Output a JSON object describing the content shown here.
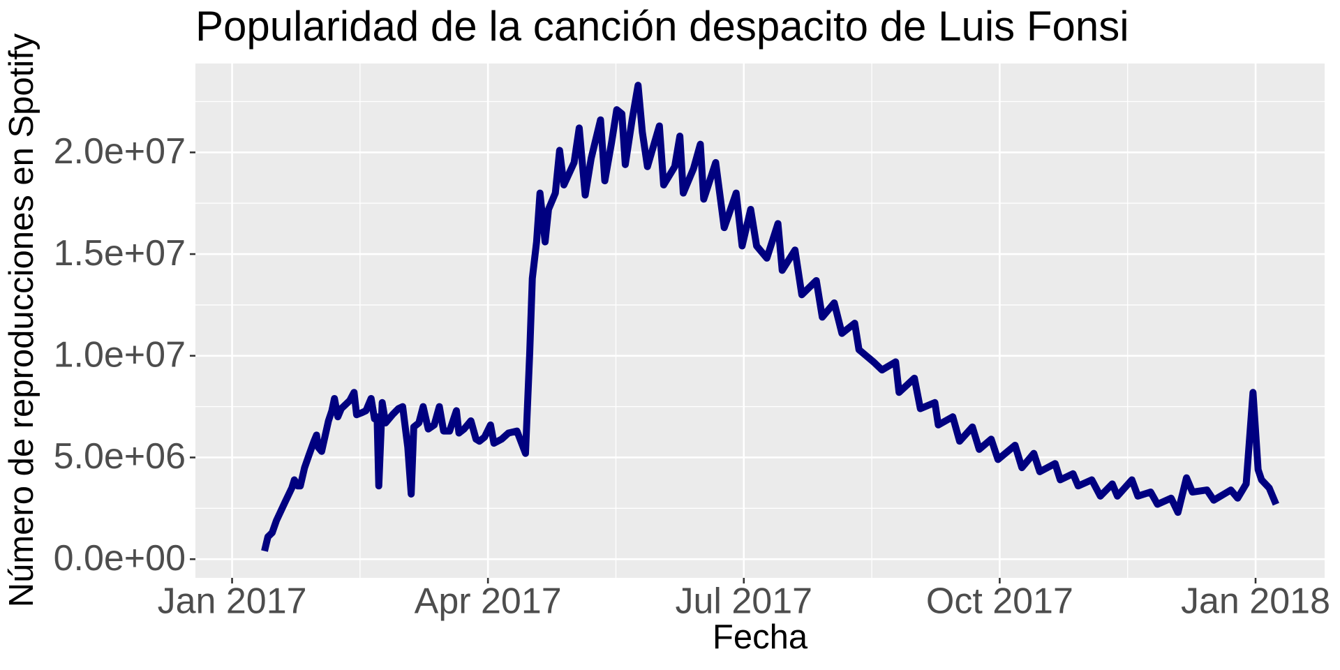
{
  "chart_data": {
    "type": "line",
    "title": "Popularidad de la canción despacito de Luis Fonsi",
    "x_label": "Fecha",
    "y_label": "Número de reproducciones en Spotify",
    "color": "#000080",
    "grid": true,
    "background": "#EBEBEB",
    "xlim": [
      -0.43,
      12.81
    ],
    "ylim": [
      -920000,
      24370000
    ],
    "xticks": [
      {
        "value": 0,
        "label": "Jan 2017"
      },
      {
        "value": 3,
        "label": "Apr 2017"
      },
      {
        "value": 6,
        "label": "Jul 2017"
      },
      {
        "value": 9,
        "label": "Oct 2017"
      },
      {
        "value": 12,
        "label": "Jan 2018"
      }
    ],
    "xminorticks": [
      1.5,
      4.5,
      7.5,
      10.5
    ],
    "yticks": [
      {
        "value": 0,
        "label": "0.0e+00"
      },
      {
        "value": 5000000,
        "label": "5.0e+06"
      },
      {
        "value": 10000000,
        "label": "1.0e+07"
      },
      {
        "value": 15000000,
        "label": "1.5e+07"
      },
      {
        "value": 20000000,
        "label": "2.0e+07"
      }
    ],
    "yminorticks": [
      2500000,
      7500000,
      12500000,
      17500000,
      22500000
    ],
    "x": [
      0.38,
      0.42,
      0.47,
      0.52,
      0.62,
      0.7,
      0.73,
      0.77,
      0.8,
      0.85,
      0.9,
      0.96,
      0.99,
      1.01,
      1.05,
      1.13,
      1.17,
      1.2,
      1.24,
      1.28,
      1.33,
      1.38,
      1.43,
      1.46,
      1.52,
      1.57,
      1.63,
      1.67,
      1.7,
      1.72,
      1.76,
      1.8,
      1.88,
      1.95,
      2.0,
      2.06,
      2.1,
      2.13,
      2.19,
      2.24,
      2.3,
      2.37,
      2.43,
      2.48,
      2.55,
      2.63,
      2.66,
      2.72,
      2.8,
      2.86,
      2.9,
      2.96,
      3.03,
      3.07,
      3.16,
      3.24,
      3.34,
      3.44,
      3.49,
      3.52,
      3.57,
      3.61,
      3.67,
      3.71,
      3.79,
      3.84,
      3.89,
      4.01,
      4.07,
      4.14,
      4.21,
      4.32,
      4.37,
      4.45,
      4.51,
      4.57,
      4.61,
      4.69,
      4.76,
      4.81,
      4.87,
      5.01,
      5.06,
      5.19,
      5.25,
      5.29,
      5.41,
      5.49,
      5.53,
      5.67,
      5.77,
      5.82,
      5.91,
      5.98,
      6.08,
      6.15,
      6.27,
      6.4,
      6.45,
      6.6,
      6.68,
      6.85,
      6.92,
      7.06,
      7.15,
      7.3,
      7.35,
      7.52,
      7.62,
      7.78,
      7.82,
      8.0,
      8.07,
      8.24,
      8.28,
      8.45,
      8.53,
      8.68,
      8.76,
      8.9,
      8.98,
      9.18,
      9.26,
      9.4,
      9.47,
      9.65,
      9.71,
      9.86,
      9.92,
      10.08,
      10.18,
      10.32,
      10.38,
      10.55,
      10.62,
      10.77,
      10.85,
      11.01,
      11.09,
      11.19,
      11.26,
      11.43,
      11.51,
      11.71,
      11.79,
      11.89,
      11.97,
      12.03,
      12.07,
      12.16,
      12.24
    ],
    "values": [
      400000,
      1100000,
      1300000,
      1900000,
      2800000,
      3500000,
      3900000,
      3600000,
      3600000,
      4500000,
      5100000,
      5800000,
      6100000,
      5500000,
      5300000,
      6800000,
      7300000,
      7900000,
      7000000,
      7400000,
      7600000,
      7800000,
      8200000,
      7100000,
      7200000,
      7300000,
      7900000,
      6900000,
      7000000,
      3600000,
      7700000,
      6700000,
      7100000,
      7400000,
      7500000,
      5500000,
      3200000,
      6500000,
      6700000,
      7500000,
      6400000,
      6600000,
      7500000,
      6300000,
      6300000,
      7300000,
      6200000,
      6400000,
      6800000,
      5900000,
      5800000,
      6000000,
      6600000,
      5700000,
      5900000,
      6200000,
      6300000,
      5200000,
      10200000,
      13800000,
      15600000,
      18000000,
      15600000,
      17200000,
      18000000,
      20100000,
      18400000,
      19500000,
      21200000,
      17900000,
      19700000,
      21600000,
      18600000,
      20500000,
      22100000,
      21900000,
      19400000,
      21600000,
      23300000,
      21000000,
      19300000,
      21300000,
      18400000,
      19300000,
      20800000,
      18000000,
      19200000,
      20400000,
      17700000,
      19500000,
      16300000,
      16900000,
      18000000,
      15400000,
      17200000,
      15400000,
      14800000,
      16500000,
      14200000,
      15200000,
      13000000,
      13700000,
      11900000,
      12600000,
      11100000,
      11600000,
      10300000,
      9700000,
      9300000,
      9700000,
      8200000,
      8900000,
      7400000,
      7700000,
      6600000,
      7000000,
      5800000,
      6500000,
      5400000,
      5900000,
      4900000,
      5600000,
      4500000,
      5200000,
      4300000,
      4700000,
      3900000,
      4200000,
      3600000,
      3900000,
      3100000,
      3700000,
      3100000,
      3900000,
      3100000,
      3300000,
      2700000,
      3000000,
      2300000,
      4000000,
      3300000,
      3400000,
      2900000,
      3400000,
      3000000,
      3700000,
      8200000,
      4400000,
      3900000,
      3500000,
      2700000
    ]
  }
}
